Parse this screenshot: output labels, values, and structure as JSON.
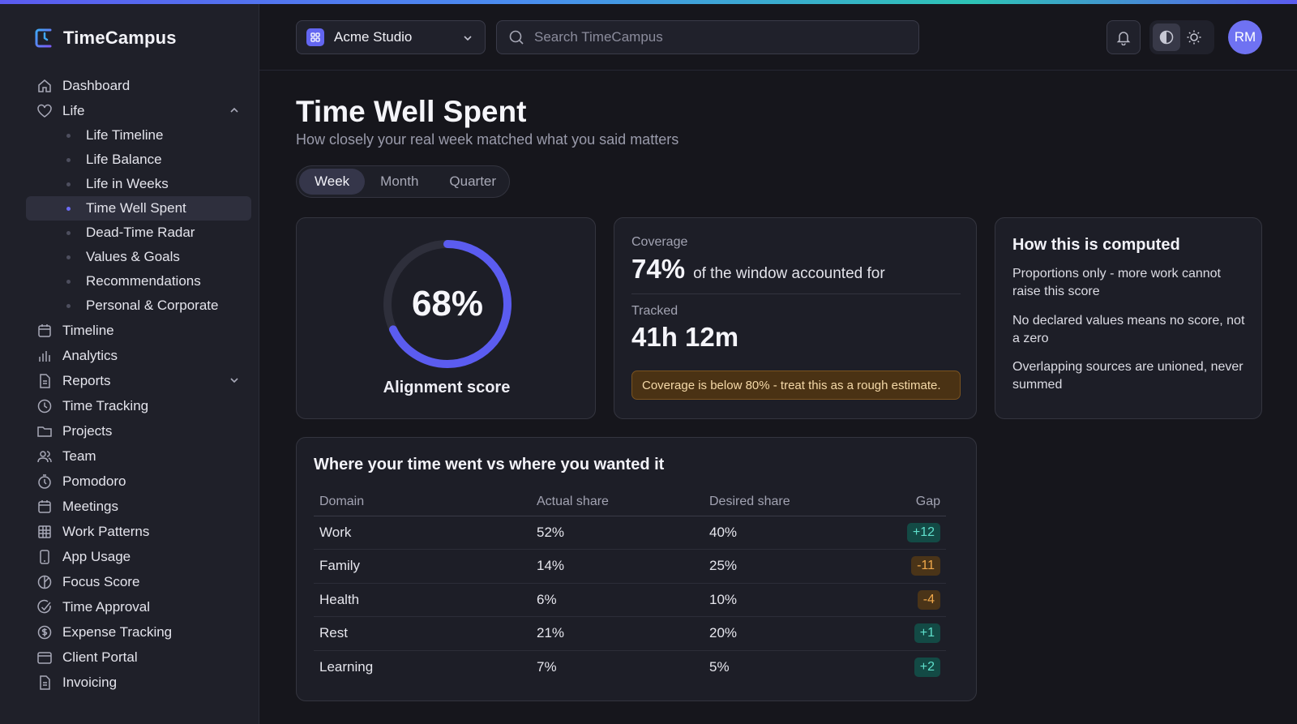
{
  "app": {
    "name": "TimeCampus",
    "accent_color": "#6366f1"
  },
  "header": {
    "workspace": "Acme Studio",
    "search_placeholder": "Search TimeCampus",
    "avatar_initials": "RM"
  },
  "sidebar": {
    "items": [
      {
        "label": "Dashboard",
        "icon": "home-icon"
      },
      {
        "label": "Life",
        "icon": "heart-icon",
        "expanded": true
      },
      {
        "label": "Timeline",
        "icon": "calendar-icon"
      },
      {
        "label": "Analytics",
        "icon": "bar-chart-icon"
      },
      {
        "label": "Reports",
        "icon": "document-icon",
        "expanded": false
      },
      {
        "label": "Time Tracking",
        "icon": "clock-icon"
      },
      {
        "label": "Projects",
        "icon": "folder-icon"
      },
      {
        "label": "Team",
        "icon": "users-icon"
      },
      {
        "label": "Pomodoro",
        "icon": "timer-icon"
      },
      {
        "label": "Meetings",
        "icon": "calendar-icon"
      },
      {
        "label": "Work Patterns",
        "icon": "grid-icon"
      },
      {
        "label": "App Usage",
        "icon": "phone-icon"
      },
      {
        "label": "Focus Score",
        "icon": "target-icon"
      },
      {
        "label": "Time Approval",
        "icon": "check-circle-icon"
      },
      {
        "label": "Expense Tracking",
        "icon": "dollar-icon"
      },
      {
        "label": "Client Portal",
        "icon": "window-icon"
      },
      {
        "label": "Invoicing",
        "icon": "invoice-icon"
      }
    ],
    "life_subitems": [
      {
        "label": "Life Timeline"
      },
      {
        "label": "Life Balance"
      },
      {
        "label": "Life in Weeks"
      },
      {
        "label": "Time Well Spent",
        "active": true
      },
      {
        "label": "Dead-Time Radar"
      },
      {
        "label": "Values & Goals"
      },
      {
        "label": "Recommendations"
      },
      {
        "label": "Personal & Corporate"
      }
    ]
  },
  "page": {
    "title": "Time Well Spent",
    "subtitle": "How closely your real week matched what you said matters",
    "tabs": [
      "Week",
      "Month",
      "Quarter"
    ],
    "active_tab": "Week"
  },
  "score": {
    "value": "68%",
    "fraction": 0.68,
    "label": "Alignment score",
    "ring_color": "#5b5cf0"
  },
  "coverage": {
    "label": "Coverage",
    "value": "74%",
    "text": "of the window accounted for",
    "tracked_label": "Tracked",
    "tracked_value": "41h 12m",
    "warning": "Coverage is below 80% - treat this as a rough estimate."
  },
  "info": {
    "title": "How this is computed",
    "points": [
      "Proportions only - more work cannot raise this score",
      "No declared values means no score, not a zero",
      "Overlapping sources are unioned, never summed"
    ]
  },
  "table": {
    "title": "Where your time went vs where you wanted it",
    "headers": [
      "Domain",
      "Actual share",
      "Desired share",
      "Gap"
    ],
    "rows": [
      {
        "domain": "Work",
        "actual": "52%",
        "desired": "40%",
        "gap": "+12",
        "sign": "pos"
      },
      {
        "domain": "Family",
        "actual": "14%",
        "desired": "25%",
        "gap": "-11",
        "sign": "neg"
      },
      {
        "domain": "Health",
        "actual": "6%",
        "desired": "10%",
        "gap": "-4",
        "sign": "neg"
      },
      {
        "domain": "Rest",
        "actual": "21%",
        "desired": "20%",
        "gap": "+1",
        "sign": "pos"
      },
      {
        "domain": "Learning",
        "actual": "7%",
        "desired": "5%",
        "gap": "+2",
        "sign": "pos"
      }
    ]
  }
}
